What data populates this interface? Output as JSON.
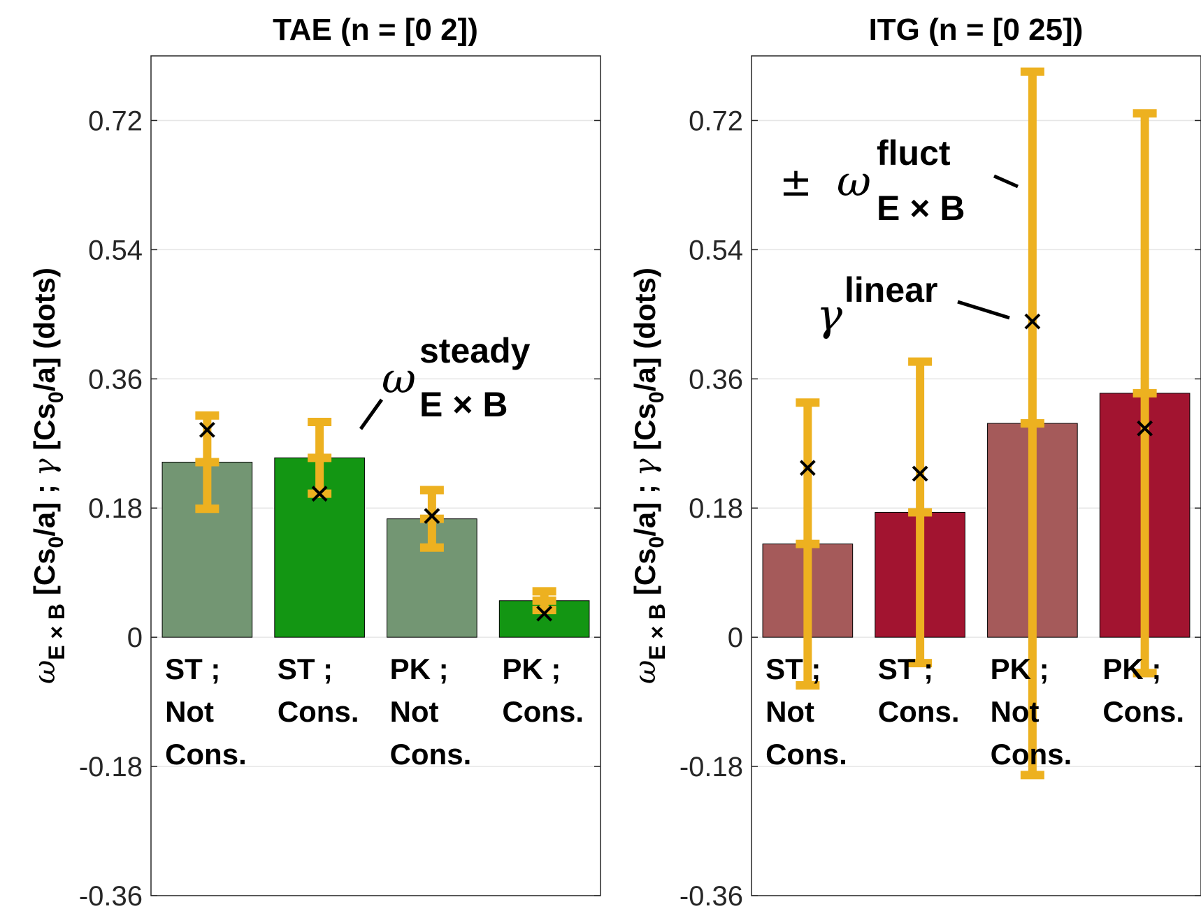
{
  "colors": {
    "tae_not_cons": "#739673",
    "tae_cons": "#139613",
    "itg_not_cons": "#a55a5a",
    "itg_cons": "#a21430",
    "errorbar": "#edb120",
    "marker": "#000000",
    "grid": "#e6e6e6"
  },
  "ylabel": {
    "omega": "ω",
    "sub": "E × B",
    "part1": " [Cs",
    "sub0": "0",
    "part2": "/a] ; ",
    "gamma": "γ",
    "part3": " [Cs",
    "part4": "/a] (dots)"
  },
  "chart_data": [
    {
      "type": "bar",
      "title": "TAE (n = [0 2])",
      "categories": [
        "ST ; Not Cons.",
        "ST ; Cons.",
        "PK ; Not Cons.",
        "PK ; Cons."
      ],
      "category_lines": [
        [
          "ST ;",
          "Not",
          "Cons."
        ],
        [
          "ST ;",
          "Cons."
        ],
        [
          "PK ;",
          "Not",
          "Cons."
        ],
        [
          "PK ;",
          "Cons."
        ]
      ],
      "values": [
        0.244,
        0.25,
        0.165,
        0.051
      ],
      "errorbar_half_width": [
        0.065,
        0.05,
        0.04,
        0.013
      ],
      "gamma_dots": [
        0.289,
        0.2,
        0.169,
        0.033
      ],
      "bar_color_keys": [
        "tae_not_cons",
        "tae_cons",
        "tae_not_cons",
        "tae_cons"
      ],
      "ylim": [
        -0.36,
        0.81
      ],
      "yticks": [
        -0.36,
        -0.18,
        0,
        0.18,
        0.36,
        0.54,
        0.72
      ],
      "ytick_labels": [
        "-0.36",
        "-0.18",
        "0",
        "0.18",
        "0.36",
        "0.54",
        "0.72"
      ],
      "grid": true,
      "annotation": {
        "symbol": "ω",
        "sup": "steady",
        "sub": "E × B"
      }
    },
    {
      "type": "bar",
      "title": "ITG (n = [0 25])",
      "categories": [
        "ST ; Not Cons.",
        "ST ; Cons.",
        "PK ; Not Cons.",
        "PK ; Cons."
      ],
      "category_lines": [
        [
          "ST ;",
          "Not",
          "Cons."
        ],
        [
          "ST ;",
          "Cons."
        ],
        [
          "PK ;",
          "Not",
          "Cons."
        ],
        [
          "PK ;",
          "Cons."
        ]
      ],
      "values": [
        0.13,
        0.174,
        0.298,
        0.34
      ],
      "errorbar_half_width": [
        0.197,
        0.21,
        0.49,
        0.39
      ],
      "gamma_dots": [
        0.236,
        0.228,
        0.44,
        0.291
      ],
      "bar_color_keys": [
        "itg_not_cons",
        "itg_cons",
        "itg_not_cons",
        "itg_cons"
      ],
      "ylim": [
        -0.36,
        0.81
      ],
      "yticks": [
        -0.36,
        -0.18,
        0,
        0.18,
        0.36,
        0.54,
        0.72
      ],
      "ytick_labels": [
        "-0.36",
        "-0.18",
        "0",
        "0.18",
        "0.36",
        "0.54",
        "0.72"
      ],
      "grid": true,
      "annotations": [
        {
          "prefix": "±",
          "symbol": "ω",
          "sup": "fluct",
          "sub": "E × B"
        },
        {
          "symbol": "γ",
          "sup": "linear"
        }
      ]
    }
  ]
}
